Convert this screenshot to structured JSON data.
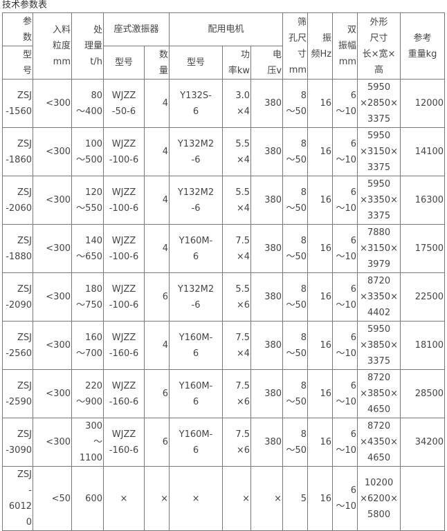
{
  "title": "技术参数表",
  "header": {
    "param": "参\n数",
    "model": "型\n号",
    "feed": "入料\n粒度\nmm",
    "capacity": "处\n理量\nt/h",
    "exciter": "座式激振器",
    "exciter_model": "型号",
    "exciter_qty": "数\n量",
    "motor": "配用电机",
    "motor_model": "型号",
    "motor_power": "功\n率kw",
    "motor_voltage": "电\n压v",
    "hole": "筛\n孔尺\n寸\nmm",
    "freq": "振\n频Hz",
    "amp": "双\n振幅\nmm",
    "dims": "外形\n尺寸\n长×宽×\n高",
    "weight": "参考\n重量kg"
  },
  "rows": [
    [
      "ZSJ\n-1560",
      "<300",
      "80\n～400",
      "WJZZ\n-50-6",
      "4",
      "Y132S-\n6",
      "3.0\n×4",
      "380",
      "8\n～50",
      "16",
      "6\n～10",
      "5950\n×2850×\n3375",
      "12000"
    ],
    [
      "ZSJ\n-1860",
      "<300",
      "100\n～500",
      "WJZZ\n-100-6",
      "4",
      "Y132M2\n-6",
      "5.5\n×4",
      "380",
      "8\n～50",
      "16",
      "6\n～10",
      "5950\n×3150×\n3375",
      "14100"
    ],
    [
      "ZSJ\n-2060",
      "<300",
      "120\n～550",
      "WJZZ\n-100-6",
      "4",
      "Y132M2\n-6",
      "5.5\n×4",
      "380",
      "8\n～50",
      "16",
      "6\n～10",
      "5950\n×3350×\n3375",
      "16300"
    ],
    [
      "ZSJ\n-1880",
      "<300",
      "140\n～650",
      "WJZZ\n-100-6",
      "4",
      "Y160M-\n6",
      "7.5\n×4",
      "380",
      "8\n～50",
      "16",
      "6\n～10",
      "7880\n×3150×\n3979",
      "17500"
    ],
    [
      "ZSJ\n-2090",
      "<300",
      "180\n～750",
      "WJZZ\n-100-6",
      "6",
      "Y132M2\n-6",
      "5.5\n×6",
      "380",
      "8\n～50",
      "16",
      "6\n～10",
      "8720\n×3350×\n4402",
      "22500"
    ],
    [
      "ZSJ\n-2560",
      "<300",
      "160\n～700",
      "WJZZ\n-160-6",
      "4",
      "Y160M-\n6",
      "7.5\n×4",
      "380",
      "8\n～50",
      "16",
      "6\n～10",
      "5950\n×3850×\n3375",
      "18100"
    ],
    [
      "ZSJ\n-2590",
      "<300",
      "220\n～900",
      "WJZZ\n-160-6",
      "6",
      "Y160M-\n6",
      "7.5\n×6",
      "380",
      "8\n～50",
      "16",
      "6\n～10",
      "8720\n×3850×\n4650",
      "28500"
    ],
    [
      "ZSJ\n-3090",
      "<300",
      "300\n～\n1100",
      "WJZZ\n-160-6",
      "6",
      "Y160M-\n6",
      "7.5\n×6",
      "380",
      "8\n～50",
      "16",
      "6\n～10",
      "8720\n×4350×\n4650",
      "34200"
    ],
    [
      "ZSJ\n-\n60120",
      "<50",
      "600",
      "×",
      "×",
      "×",
      "×",
      "×",
      "5",
      "16",
      "6\n～10",
      "10200\n×6200×\n5800",
      ""
    ]
  ]
}
